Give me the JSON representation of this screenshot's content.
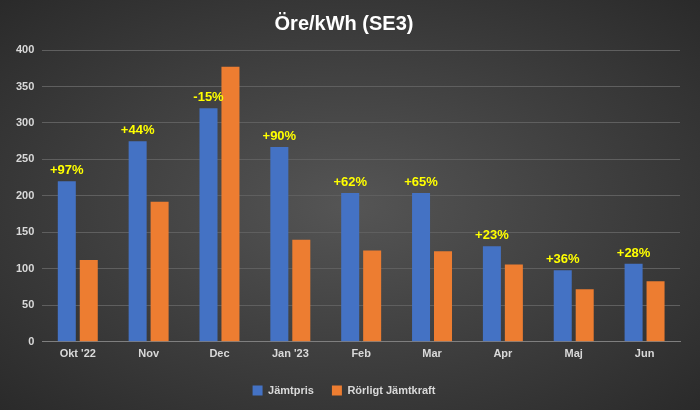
{
  "chart_data": {
    "type": "bar",
    "title": "Öre/kWh (SE3)",
    "categories": [
      "Okt '22",
      "Nov",
      "Dec",
      "Jan '23",
      "Feb",
      "Mar",
      "Apr",
      "Maj",
      "Jun"
    ],
    "series": [
      {
        "name": "Jämtpris",
        "color": "#4472c4",
        "values": [
          220,
          275,
          320,
          267,
          204,
          204,
          131,
          98,
          107
        ]
      },
      {
        "name": "Rörligt Jämtkraft",
        "color": "#ed7d31",
        "values": [
          112,
          192,
          377,
          140,
          125,
          124,
          106,
          72,
          83
        ]
      }
    ],
    "annotations": [
      "+97%",
      "+44%",
      "-15%",
      "+90%",
      "+62%",
      "+65%",
      "+23%",
      "+36%",
      "+28%"
    ],
    "ylim": [
      0,
      400
    ],
    "yticks": [
      0,
      50,
      100,
      150,
      200,
      250,
      300,
      350,
      400
    ],
    "grid": true,
    "legend": "bottom"
  }
}
